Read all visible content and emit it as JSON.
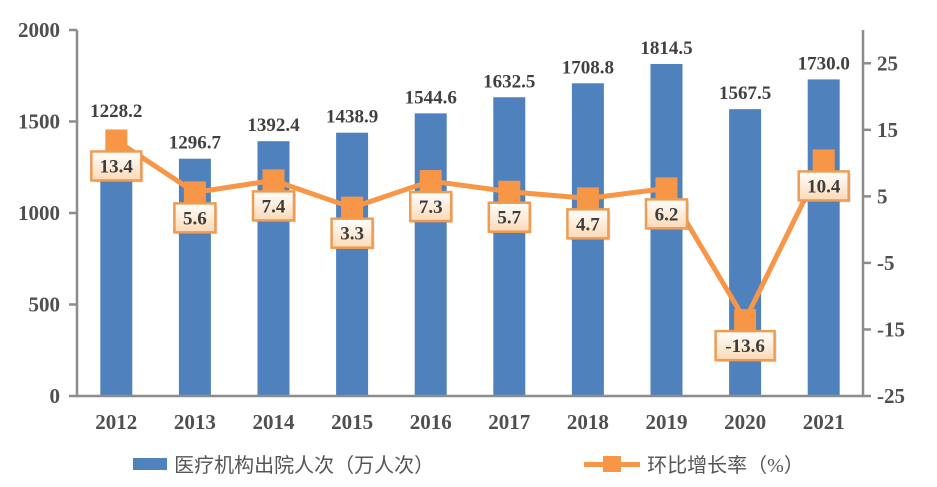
{
  "chart_data": {
    "type": "bar+line combo",
    "categories": [
      "2012",
      "2013",
      "2014",
      "2015",
      "2016",
      "2017",
      "2018",
      "2019",
      "2020",
      "2021"
    ],
    "series": [
      {
        "name": "医疗机构出院人次（万人次）",
        "type": "bar",
        "axis": "left",
        "values": [
          1228.2,
          1296.7,
          1392.4,
          1438.9,
          1544.6,
          1632.5,
          1708.8,
          1814.5,
          1567.5,
          1730.0
        ]
      },
      {
        "name": "环比增长率（%）",
        "type": "line",
        "axis": "right",
        "values": [
          13.4,
          5.6,
          7.4,
          3.3,
          7.3,
          5.7,
          4.7,
          6.2,
          -13.6,
          10.4
        ]
      }
    ],
    "left_axis": {
      "min": 0,
      "max": 2000,
      "ticks": [
        0,
        500,
        1000,
        1500,
        2000
      ]
    },
    "right_axis": {
      "min": -25,
      "max": 30,
      "ticks": [
        -25,
        -15,
        -5,
        5,
        15,
        25
      ]
    },
    "grid": "off",
    "legend_position": "bottom",
    "title": ""
  },
  "colors": {
    "bar": "#4F81BD",
    "line": "#F79646",
    "marker": "#F79646",
    "axis": "#8C8C8C",
    "axis_text": "#4F4F4F",
    "bar_label_text": "#404040",
    "box_border": "#ED9C52",
    "box_fill_top": "#FFFFFF",
    "box_fill_bottom": "#FBD9B5",
    "box_text": "#3D3D3D",
    "legend_text": "#555555"
  }
}
